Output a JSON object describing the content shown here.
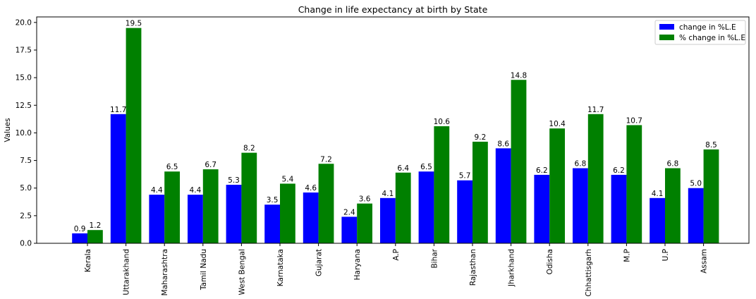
{
  "chart_data": {
    "type": "bar",
    "title": "Change in life expectancy at birth by State",
    "xlabel": "",
    "ylabel": "Values",
    "ylim": [
      0,
      20.5
    ],
    "yticks": [
      0.0,
      2.5,
      5.0,
      7.5,
      10.0,
      12.5,
      15.0,
      17.5,
      20.0
    ],
    "ytick_labels": [
      "0.0",
      "2.5",
      "5.0",
      "7.5",
      "10.0",
      "12.5",
      "15.0",
      "17.5",
      "20.0"
    ],
    "grid": false,
    "legend_position": "top-right",
    "categories": [
      "Kerala",
      "Uttarakhand",
      "Maharashtra",
      "Tamil Nadu",
      "West Bengal",
      "Karnataka",
      "Gujarat",
      "Haryana",
      "A.P",
      "Bihar",
      "Rajasthan",
      "Jharkhand",
      "Odisha",
      "Chhattisgarh",
      "M.P",
      "U.P",
      "Assam"
    ],
    "series": [
      {
        "name": "change in %L.E",
        "color": "#0000ff",
        "values": [
          0.9,
          11.7,
          4.4,
          4.4,
          5.3,
          3.5,
          4.6,
          2.4,
          4.1,
          6.5,
          5.7,
          8.6,
          6.2,
          6.8,
          6.2,
          4.1,
          5.0
        ],
        "labels": [
          "0.9",
          "11.7",
          "4.4",
          "4.4",
          "5.3",
          "3.5",
          "4.6",
          "2.4",
          "4.1",
          "6.5",
          "5.7",
          "8.6",
          "6.2",
          "6.8",
          "6.2",
          "4.1",
          "5.0"
        ]
      },
      {
        "name": "% change in %L.E",
        "color": "#008000",
        "values": [
          1.2,
          19.5,
          6.5,
          6.7,
          8.2,
          5.4,
          7.2,
          3.6,
          6.4,
          10.6,
          9.2,
          14.8,
          10.4,
          11.7,
          10.7,
          6.8,
          8.5
        ],
        "labels": [
          "1.2",
          "19.5",
          "6.5",
          "6.7",
          "8.2",
          "5.4",
          "7.2",
          "3.6",
          "6.4",
          "10.6",
          "9.2",
          "14.8",
          "10.4",
          "11.7",
          "10.7",
          "6.8",
          "8.5"
        ]
      }
    ]
  }
}
